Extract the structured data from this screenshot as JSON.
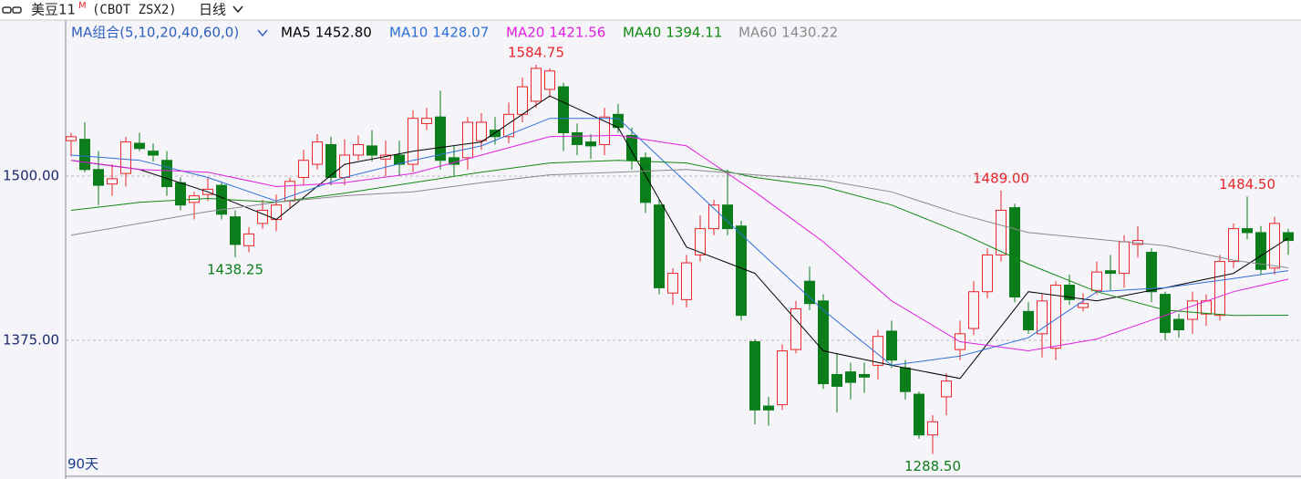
{
  "chart_data": {
    "type": "candlestick",
    "title": "美豆11",
    "title_mark": "M",
    "symbol": "(CBOT ZSX2)",
    "period": "日线",
    "ma_group": "MA组合(5,10,20,40,60,0)",
    "days_label": "90天",
    "up_color": "#e8262a",
    "down_color": "#0b7d1a",
    "ylim": [
      1273,
      1603
    ],
    "yticks": [
      {
        "value": 1500,
        "label": "1500.00"
      },
      {
        "value": 1375,
        "label": "1375.00"
      }
    ],
    "grid": true,
    "candles": {
      "open": [
        1527,
        1528,
        1505,
        1494,
        1502,
        1525,
        1519,
        1512,
        1495,
        1480,
        1486,
        1493,
        1469,
        1447,
        1464,
        1467,
        1481,
        1499,
        1509,
        1524,
        1499,
        1516,
        1523,
        1513,
        1516,
        1509,
        1540,
        1545,
        1514,
        1514,
        1527,
        1535,
        1530,
        1547,
        1557,
        1566,
        1568,
        1533,
        1526,
        1524,
        1547,
        1531,
        1514,
        1478,
        1411,
        1406,
        1440,
        1460,
        1478,
        1462,
        1374,
        1325,
        1326,
        1368,
        1420,
        1405,
        1349,
        1351,
        1349,
        1356,
        1382,
        1354,
        1334,
        1303,
        1332,
        1368,
        1384,
        1412,
        1440,
        1476,
        1397,
        1380,
        1369,
        1417,
        1400,
        1413,
        1428,
        1426,
        1448,
        1442,
        1410,
        1391,
        1391,
        1395,
        1394,
        1435,
        1460,
        1457,
        1430,
        1457
      ],
      "high": [
        1533,
        1541,
        1519,
        1509,
        1530,
        1533,
        1525,
        1519,
        1499,
        1488,
        1499,
        1495,
        1474,
        1461,
        1482,
        1486,
        1499,
        1520,
        1532,
        1530,
        1528,
        1531,
        1535,
        1527,
        1527,
        1550,
        1552,
        1565,
        1523,
        1545,
        1548,
        1545,
        1556,
        1575,
        1584.75,
        1582,
        1571,
        1540,
        1532,
        1552,
        1555,
        1537,
        1518,
        1482,
        1430,
        1440,
        1470,
        1482,
        1505,
        1466,
        1376,
        1332,
        1372,
        1405,
        1431,
        1410,
        1365,
        1358,
        1358,
        1383,
        1390,
        1360,
        1336,
        1318,
        1350,
        1390,
        1420,
        1445,
        1489,
        1479,
        1404,
        1410,
        1420,
        1425,
        1411,
        1435,
        1440,
        1455,
        1462,
        1445,
        1412,
        1395,
        1412,
        1410,
        1440,
        1464,
        1484.5,
        1462,
        1469,
        1460
      ],
      "low": [
        1515,
        1503,
        1478,
        1485,
        1492,
        1519,
        1511,
        1485,
        1474,
        1467,
        1481,
        1467,
        1438.25,
        1442,
        1460,
        1458,
        1476,
        1493,
        1505,
        1493,
        1493,
        1512,
        1511,
        1500,
        1500,
        1503,
        1535,
        1505,
        1500,
        1505,
        1520,
        1524,
        1525,
        1541,
        1552,
        1560,
        1519,
        1516,
        1513,
        1516,
        1533,
        1505,
        1472,
        1410,
        1402,
        1400,
        1435,
        1455,
        1455,
        1390,
        1311,
        1310,
        1322,
        1365,
        1398,
        1338,
        1320,
        1330,
        1335,
        1345,
        1354,
        1330,
        1300,
        1288.5,
        1318,
        1360,
        1379,
        1407,
        1435,
        1404,
        1380,
        1362,
        1360,
        1402,
        1397,
        1410,
        1413,
        1415,
        1438,
        1404,
        1375,
        1377,
        1380,
        1386,
        1390,
        1430,
        1452,
        1425,
        1425,
        1440
      ],
      "close": [
        1530,
        1505,
        1493,
        1498,
        1526,
        1521,
        1516,
        1492,
        1478,
        1485,
        1490,
        1471,
        1448,
        1456,
        1474,
        1478,
        1496,
        1512,
        1526,
        1499,
        1516,
        1524,
        1516,
        1516,
        1509,
        1544,
        1544,
        1512,
        1509,
        1541,
        1541,
        1530,
        1547,
        1568,
        1582,
        1580,
        1533,
        1524,
        1523,
        1545,
        1537,
        1512,
        1480,
        1415,
        1426,
        1434,
        1460,
        1478,
        1460,
        1394,
        1322,
        1322,
        1367,
        1399,
        1403,
        1342,
        1340,
        1343,
        1347,
        1378,
        1360,
        1336,
        1303,
        1313,
        1344,
        1380,
        1412,
        1440,
        1474,
        1408,
        1383,
        1405,
        1417,
        1406,
        1403,
        1427,
        1426,
        1450,
        1451,
        1412,
        1381,
        1383,
        1405,
        1405,
        1435,
        1460,
        1457,
        1429,
        1464,
        1451
      ]
    },
    "ma_x": [
      0,
      5,
      10,
      15,
      20,
      25,
      30,
      35,
      40,
      45,
      50,
      55,
      60,
      65,
      70,
      75,
      80,
      85,
      89
    ],
    "series": [
      {
        "name": "MA5",
        "color": "#000000",
        "legend_label": "1452.80",
        "values": [
          1512,
          1505,
          1488,
          1467,
          1509,
          1519,
          1526,
          1561,
          1537,
          1446,
          1426,
          1367,
          1356,
          1346,
          1412,
          1405,
          1415,
          1426,
          1452.8
        ]
      },
      {
        "name": "MA10",
        "color": "#2f6fd8",
        "legend_label": "1428.07",
        "values": [
          1516,
          1512,
          1499,
          1481,
          1499,
          1512,
          1523,
          1544,
          1544,
          1495,
          1446,
          1398,
          1356,
          1363,
          1377,
          1412,
          1415,
          1422,
          1428.07
        ]
      },
      {
        "name": "MA20",
        "color": "#e020e0",
        "legend_label": "1421.56",
        "values": [
          1512,
          1505,
          1503,
          1492,
          1495,
          1502,
          1516,
          1530,
          1531,
          1523,
          1488,
          1450,
          1405,
          1374,
          1367,
          1376,
          1394,
          1412,
          1421.56
        ]
      },
      {
        "name": "MA40",
        "color": "#108a10",
        "legend_label": "1394.11",
        "values": [
          1474,
          1480,
          1483,
          1480,
          1487,
          1495,
          1503,
          1510,
          1512,
          1510,
          1499,
          1492,
          1478,
          1457,
          1433,
          1412,
          1398,
          1394,
          1394.11
        ]
      },
      {
        "name": "MA60",
        "color": "#8a8a8a",
        "legend_label": "1430.22",
        "values": [
          1455,
          1464,
          1473,
          1480,
          1485,
          1488,
          1495,
          1501,
          1503,
          1505,
          1501,
          1497,
          1488,
          1471,
          1457,
          1452,
          1447,
          1436,
          1430.22
        ]
      }
    ],
    "annotations": [
      {
        "text": "1584.75",
        "value": 1584.75,
        "index": 34,
        "kind": "high"
      },
      {
        "text": "1438.25",
        "value": 1438.25,
        "index": 12,
        "kind": "low"
      },
      {
        "text": "1288.50",
        "value": 1288.5,
        "index": 63,
        "kind": "low"
      },
      {
        "text": "1489.00",
        "value": 1489,
        "index": 68,
        "kind": "high"
      },
      {
        "text": "1484.50",
        "value": 1484.5,
        "index": 86,
        "kind": "high"
      }
    ]
  }
}
